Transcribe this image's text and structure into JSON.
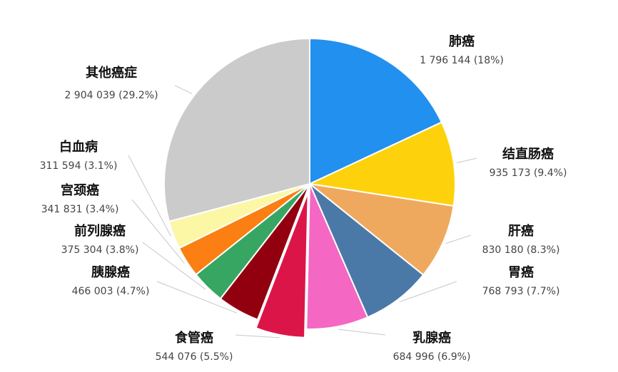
{
  "chart_data": {
    "type": "pie",
    "title": "",
    "slices": [
      {
        "name": "肺癌",
        "value": 1796144,
        "value_label": "1 796 144 (18%)",
        "percent": 18.0,
        "color": "#2290ee"
      },
      {
        "name": "结直肠癌",
        "value": 935173,
        "value_label": "935 173 (9.4%)",
        "percent": 9.4,
        "color": "#fdd20c"
      },
      {
        "name": "肝癌",
        "value": 830180,
        "value_label": "830 180 (8.3%)",
        "percent": 8.3,
        "color": "#efa95e"
      },
      {
        "name": "胃癌",
        "value": 768793,
        "value_label": "768 793 (7.7%)",
        "percent": 7.7,
        "color": "#4a79a8"
      },
      {
        "name": "乳腺癌",
        "value": 684996,
        "value_label": "684 996 (6.9%)",
        "percent": 6.9,
        "color": "#f467c2"
      },
      {
        "name": "食管癌",
        "value": 544076,
        "value_label": "544 076 (5.5%)",
        "percent": 5.5,
        "color": "#dc1548",
        "exploded": true
      },
      {
        "name": "胰腺癌",
        "value": 466003,
        "value_label": "466 003 (4.7%)",
        "percent": 4.7,
        "color": "#920010"
      },
      {
        "name": "前列腺癌",
        "value": 375304,
        "value_label": "375 304 (3.8%)",
        "percent": 3.8,
        "color": "#37a663"
      },
      {
        "name": "宫颈癌",
        "value": 341831,
        "value_label": "341 831 (3.4%)",
        "percent": 3.4,
        "color": "#fb7f12"
      },
      {
        "name": "白血病",
        "value": 311594,
        "value_label": "311 594 (3.1%)",
        "percent": 3.1,
        "color": "#fcf7a5"
      },
      {
        "name": "其他癌症",
        "value": 2904039,
        "value_label": "2 904 039 (29.2%)",
        "percent": 29.2,
        "color": "#cbcbcb"
      }
    ]
  }
}
